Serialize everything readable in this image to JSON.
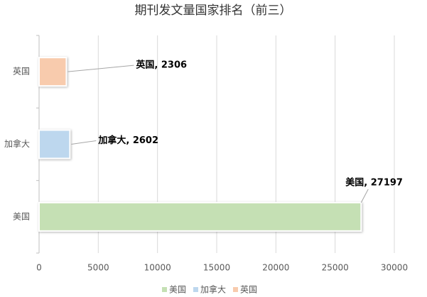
{
  "chart_data": {
    "type": "bar",
    "orientation": "horizontal",
    "title": "期刊发文量国家排名（前三）",
    "categories": [
      "美国",
      "加拿大",
      "英国"
    ],
    "values": [
      27197,
      2602,
      2306
    ],
    "value_labels": [
      "美国, 27197",
      "加拿大, 2602",
      "英国, 2306"
    ],
    "colors": [
      "#c5e0b4",
      "#bdd7ee",
      "#f8cbad"
    ],
    "xlim": [
      0,
      30000
    ],
    "xticks": [
      0,
      5000,
      10000,
      15000,
      20000,
      25000,
      30000
    ],
    "grid": true,
    "legend": "bottom"
  }
}
